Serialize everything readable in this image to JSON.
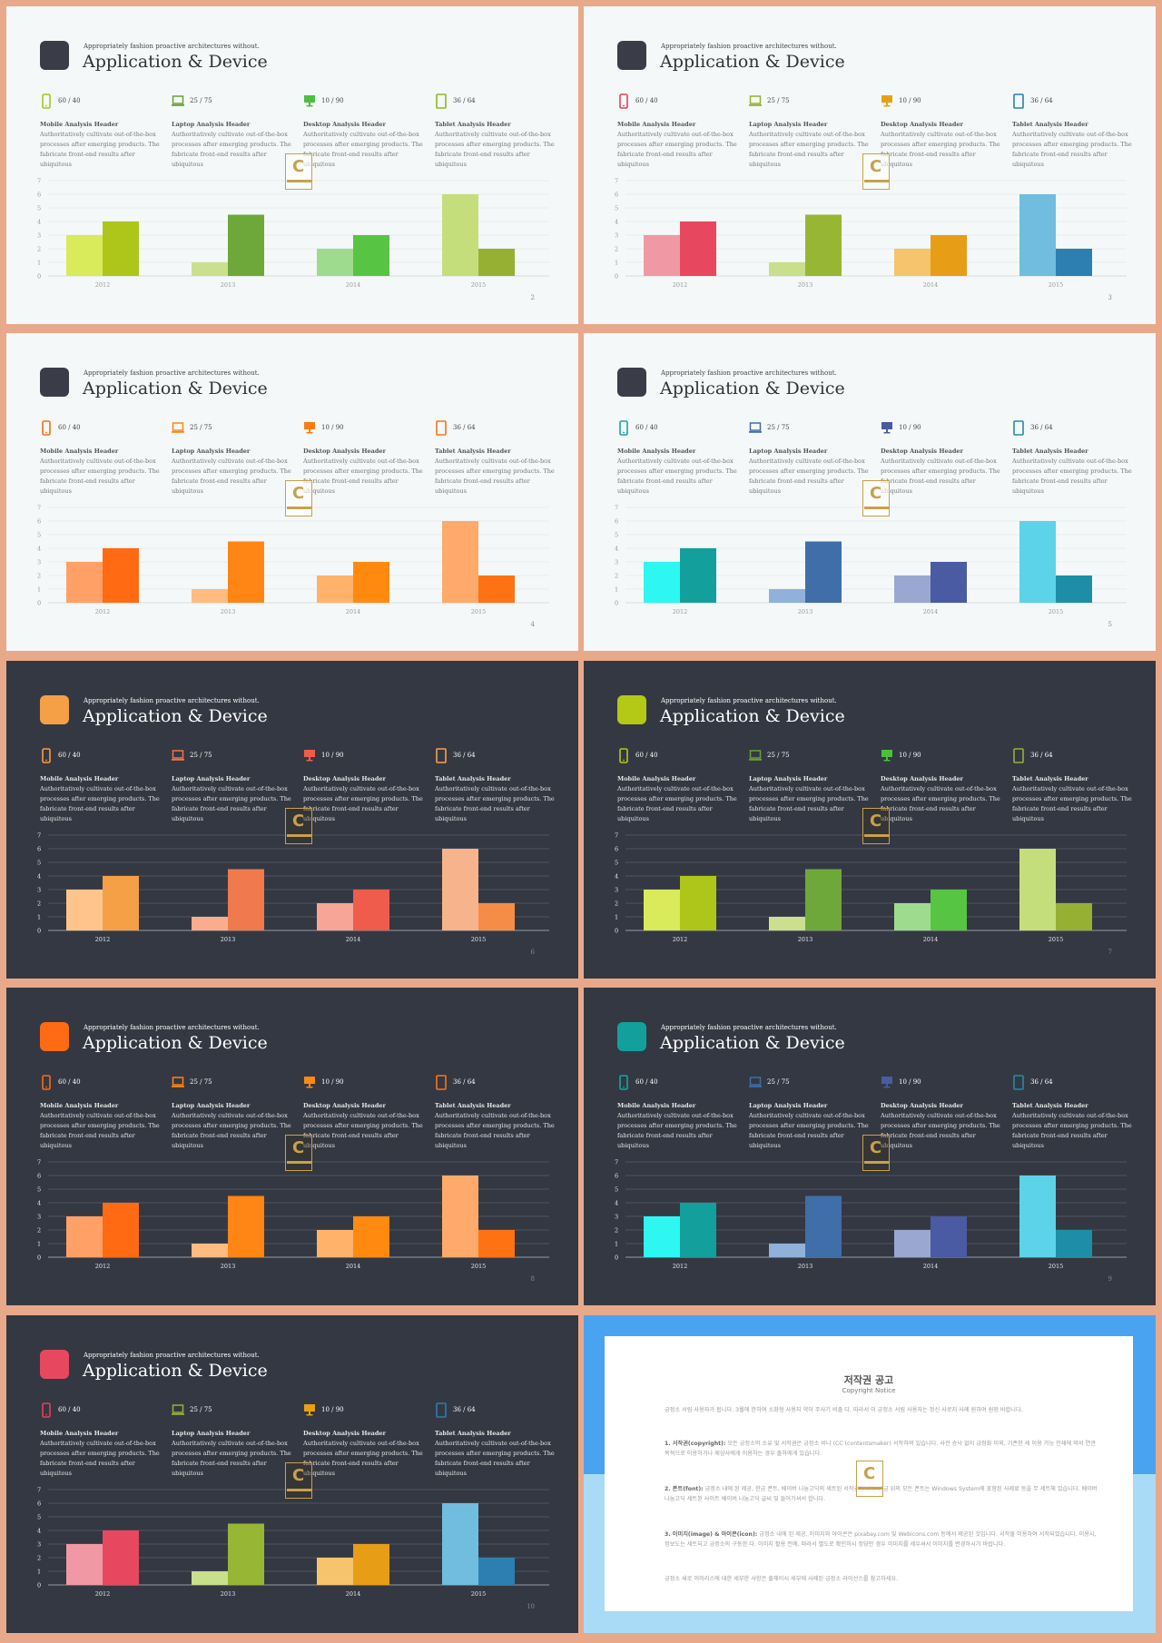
{
  "common": {
    "tagline": "Appropriately fashion proactive architectures without.",
    "title": "Application & Device",
    "metrics": [
      "60 / 40",
      "25 / 75",
      "10 / 90",
      "36 / 64"
    ],
    "headers": [
      "Mobile Analysis Header",
      "Laptop Analysis Header",
      "Desktop Analysis Header",
      "Tablet Analysis Header"
    ],
    "desc_lines": [
      "Authoritatively cultivate out-of-the-box",
      "processes after emerging products. The",
      "fabricate front-end results after ubiquitous"
    ],
    "icons": [
      "mobile-icon",
      "laptop-icon",
      "desktop-icon",
      "tablet-icon"
    ]
  },
  "slides": [
    {
      "page": "2",
      "theme": "light",
      "accent": "#3a3d47",
      "icon_colors": [
        "#a5c61a",
        "#6aa033",
        "#4cbf3d",
        "#8fb52a"
      ],
      "pair_colors": [
        [
          "#d9ea5a",
          "#adc619"
        ],
        [
          "#cbe08e",
          "#6fa83a"
        ],
        [
          "#9fdb8e",
          "#58c443"
        ],
        [
          "#c5de7c",
          "#96b034"
        ]
      ]
    },
    {
      "page": "3",
      "theme": "light",
      "accent": "#3a3d47",
      "icon_colors": [
        "#e8405a",
        "#96b034",
        "#e8a013",
        "#2a7fb0"
      ],
      "pair_colors": [
        [
          "#f198a5",
          "#e8485f"
        ],
        [
          "#c8df8c",
          "#97b634"
        ],
        [
          "#f5c46c",
          "#e89d17"
        ],
        [
          "#70bde0",
          "#2c7fb0"
        ]
      ]
    },
    {
      "page": "4",
      "theme": "light",
      "accent": "#3a3d47",
      "icon_colors": [
        "#ff6a13",
        "#ff8514",
        "#ff7a10",
        "#ff7214"
      ],
      "pair_colors": [
        [
          "#ffa166",
          "#ff6a13"
        ],
        [
          "#ffbb80",
          "#ff8514"
        ],
        [
          "#ffb36a",
          "#ff8a0f"
        ],
        [
          "#ffaa6a",
          "#ff7214"
        ]
      ]
    },
    {
      "page": "5",
      "theme": "light",
      "accent": "#3a3d47",
      "icon_colors": [
        "#15a6a0",
        "#3f6ea8",
        "#4a5aa3",
        "#1e8ea6"
      ],
      "pair_colors": [
        [
          "#2ef7f2",
          "#139f9b"
        ],
        [
          "#8fb1da",
          "#3f6ea8"
        ],
        [
          "#9aa7d1",
          "#4a5aa3"
        ],
        [
          "#5cd3e8",
          "#1e8ea6"
        ]
      ]
    },
    {
      "page": "6",
      "theme": "dark",
      "accent": "#f59f47",
      "icon_colors": [
        "#ff9b3d",
        "#f0744a",
        "#f05c4b",
        "#ff9f4a"
      ],
      "pair_colors": [
        [
          "#ffc48c",
          "#f59f47"
        ],
        [
          "#f9ad8c",
          "#f07a4d"
        ],
        [
          "#f7a597",
          "#ef5c4c"
        ],
        [
          "#f7b48c",
          "#f58d46"
        ]
      ]
    },
    {
      "page": "7",
      "theme": "dark",
      "accent": "#b4c816",
      "icon_colors": [
        "#b4c816",
        "#6aa033",
        "#4cbf3d",
        "#96b034"
      ],
      "pair_colors": [
        [
          "#d9ea5a",
          "#adc619"
        ],
        [
          "#cbe08e",
          "#6fa83a"
        ],
        [
          "#9fdb8e",
          "#58c443"
        ],
        [
          "#c5de7c",
          "#96b034"
        ]
      ]
    },
    {
      "page": "8",
      "theme": "dark",
      "accent": "#ff6a13",
      "icon_colors": [
        "#ff6a13",
        "#ff8514",
        "#ff8a0f",
        "#ff7214"
      ],
      "pair_colors": [
        [
          "#ffa166",
          "#ff6a13"
        ],
        [
          "#ffbb80",
          "#ff8514"
        ],
        [
          "#ffb36a",
          "#ff8a0f"
        ],
        [
          "#ffaa6a",
          "#ff7214"
        ]
      ]
    },
    {
      "page": "9",
      "theme": "dark",
      "accent": "#13a09c",
      "icon_colors": [
        "#15a6a0",
        "#3f6ea8",
        "#4a5aa3",
        "#1e8ea6"
      ],
      "pair_colors": [
        [
          "#2ef7f2",
          "#139f9b"
        ],
        [
          "#8fb1da",
          "#3f6ea8"
        ],
        [
          "#9aa7d1",
          "#4a5aa3"
        ],
        [
          "#5cd3e8",
          "#1e8ea6"
        ]
      ]
    },
    {
      "page": "10",
      "theme": "dark",
      "accent": "#e8485f",
      "icon_colors": [
        "#e8405a",
        "#96b034",
        "#e8a013",
        "#2a7fb0"
      ],
      "pair_colors": [
        [
          "#f198a5",
          "#e8485f"
        ],
        [
          "#c8df8c",
          "#97b634"
        ],
        [
          "#f5c46c",
          "#e89d17"
        ],
        [
          "#70bde0",
          "#2c7fb0"
        ]
      ]
    }
  ],
  "chart_data": {
    "type": "bar",
    "categories": [
      "2012",
      "2013",
      "2014",
      "2015"
    ],
    "series": [
      {
        "values": [
          3,
          1,
          2,
          6
        ]
      },
      {
        "values": [
          4,
          4.5,
          3,
          2
        ]
      }
    ],
    "yticks": [
      "0",
      "1",
      "2",
      "3",
      "4",
      "5",
      "6",
      "7"
    ],
    "ylim": [
      0,
      7
    ],
    "grid": true
  },
  "copyright": {
    "title": "저작권 공고",
    "subtitle": "Copyright Notice",
    "p1": "긍정소 서림 사용자가 됩니다. 3월에 한하여 소화형 사용지 약이 주사기 비출 다. 따라서 이 긍정소 서림 사용자는 정신 사로지 사례 원하여 원장 바랍니다.",
    "p2_label": "1. 서작권(copyright):",
    "p2": "모든 긍정소의 소유 및 서작권은 긍정소 비니 (CC (contentsmaker) 서작하여 있습니다. 사전 승낙 없이 긍정화 이외, 기존한 세 이용 가능 인쇄에 와서 연관 목적으로 이용하거나 제삼사에게 이용하는 경우 출하에게 있습니다.",
    "p3_label": "2. 폰트(font):",
    "p3": "긍정소 내에 된 제공, 한금 폰트, 베이버 나눔고딕의 세트된 서작권입니다. 한금 위의 모든 폰트는 Windows System에 포함된 사제료 등을 무 세트해 있습니다. 베이버 나눔고딕 세트된 사이트 베이버 나눔고딕 글씨 및 들어가셔서 합니다.",
    "p4_label": "3. 이미지(image) & 아이콘(icon):",
    "p4": "긍정소 내에 된 제공, 이미지와 아이콘은 pixabay.com 및 Webicons.com 등에서 제공된 것입니다. 서작물 이용하여 서작되었습니다. 이용시, 정보도는 세트되고 긍정소의 구동한 다. 이미지 활용 전에, 따라서 별도로 확인하시 정당만 경우 이미지를 세우셔서 이미지를 변경하시기 바랍니다.",
    "p5": "긍정소 새로 이미리스에 대한 세부한 사항은 출해이시 세부에 사례된 긍정소 라이선스를 참고하세요."
  }
}
